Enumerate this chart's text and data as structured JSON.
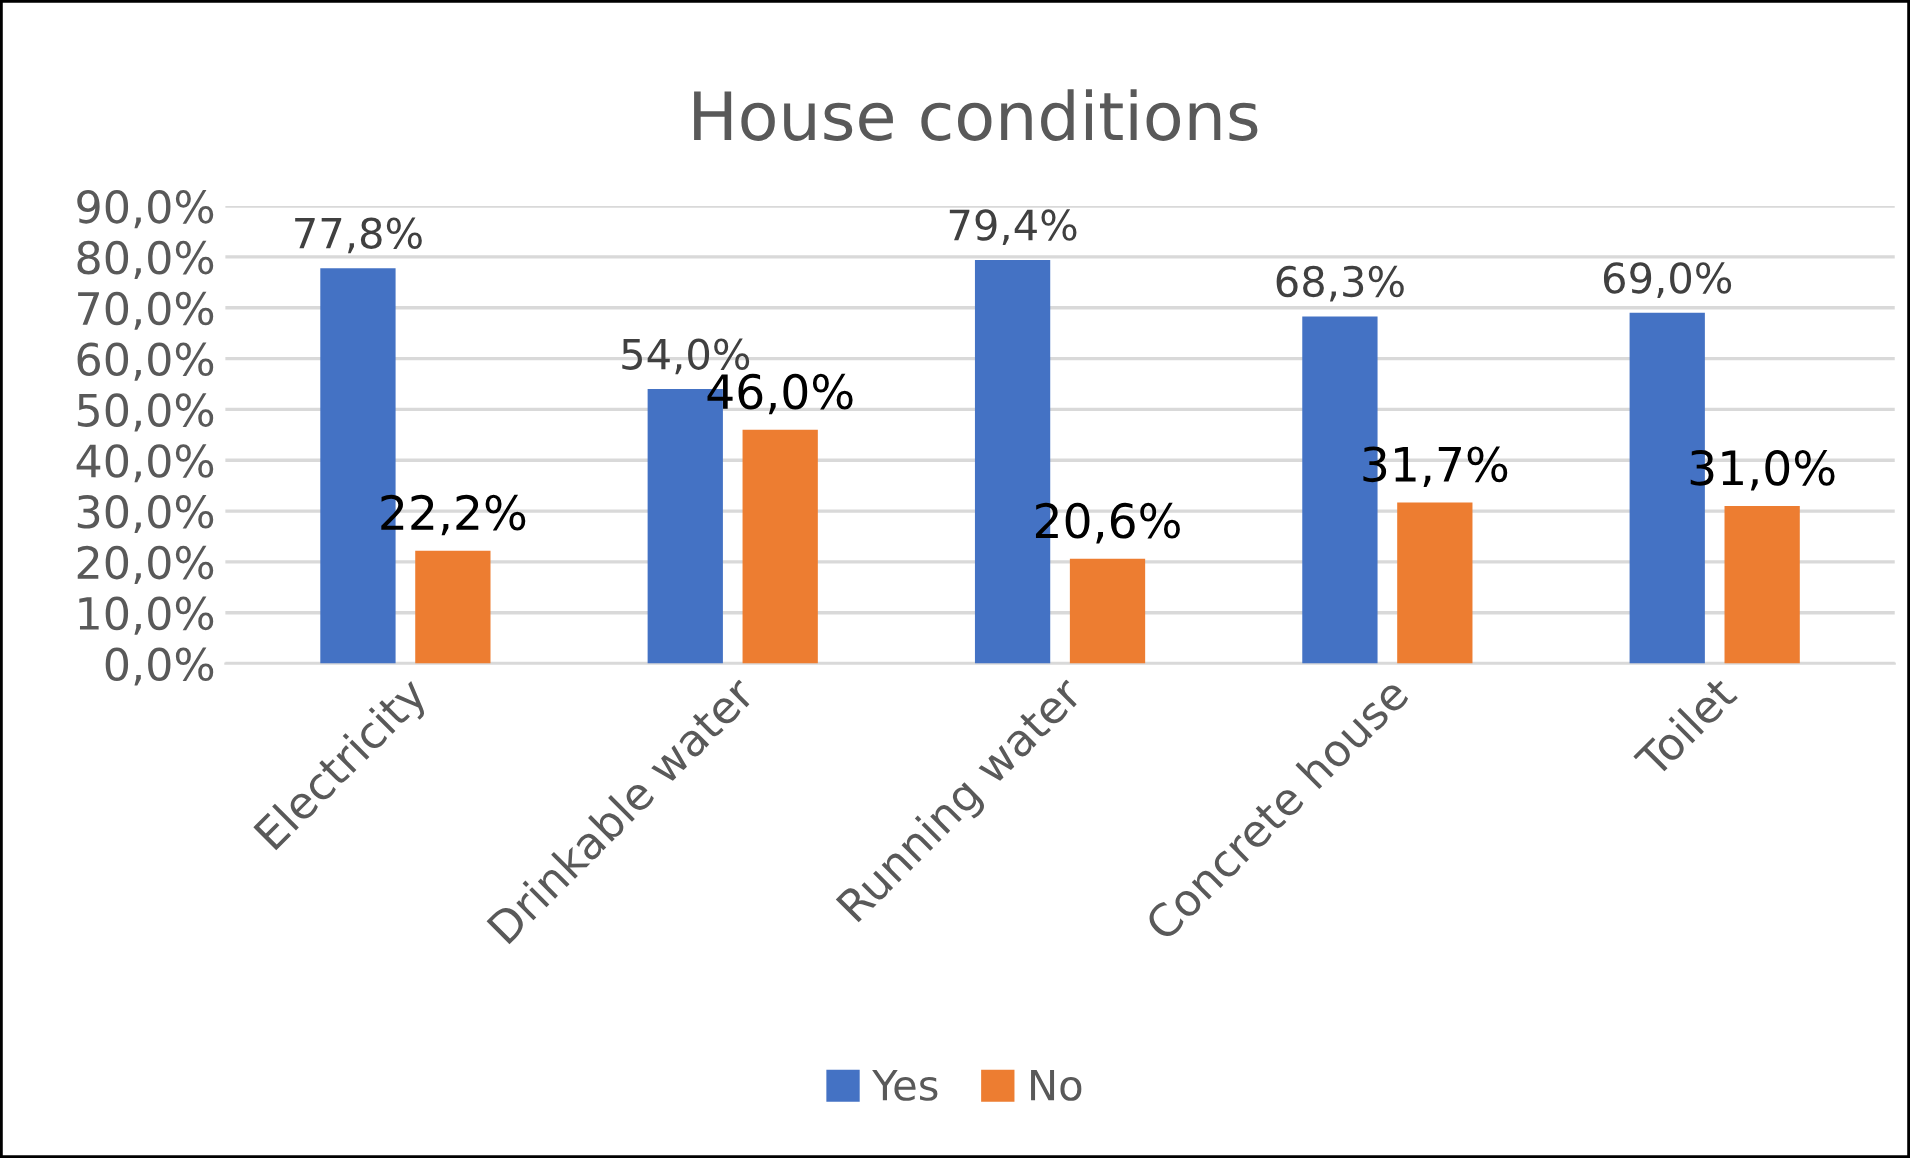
{
  "chart_data": {
    "type": "bar",
    "title": "House conditions",
    "categories": [
      "Electricity",
      "Drinkable water",
      "Running water",
      "Concrete house",
      "Toilet"
    ],
    "series": [
      {
        "name": "Yes",
        "color": "#4472c4",
        "values": [
          77.8,
          54.0,
          79.4,
          68.3,
          69.0
        ],
        "value_labels": [
          "77,8%",
          "54,0%",
          "79,4%",
          "68,3%",
          "69,0%"
        ]
      },
      {
        "name": "No",
        "color": "#ed7d31",
        "values": [
          22.2,
          46.0,
          20.6,
          31.7,
          31.0
        ],
        "value_labels": [
          "22,2%",
          "46,0%",
          "20,6%",
          "31,7%",
          "31,0%"
        ]
      }
    ],
    "ylim": [
      0,
      90
    ],
    "yticks": [
      {
        "value": 0,
        "label": "0,0%"
      },
      {
        "value": 10,
        "label": "10,0%"
      },
      {
        "value": 20,
        "label": "20,0%"
      },
      {
        "value": 30,
        "label": "30,0%"
      },
      {
        "value": 40,
        "label": "40,0%"
      },
      {
        "value": 50,
        "label": "50,0%"
      },
      {
        "value": 60,
        "label": "60,0%"
      },
      {
        "value": 70,
        "label": "70,0%"
      },
      {
        "value": 80,
        "label": "80,0%"
      },
      {
        "value": 90,
        "label": "90,0%"
      }
    ],
    "grid": "y",
    "legend": "bottom"
  }
}
